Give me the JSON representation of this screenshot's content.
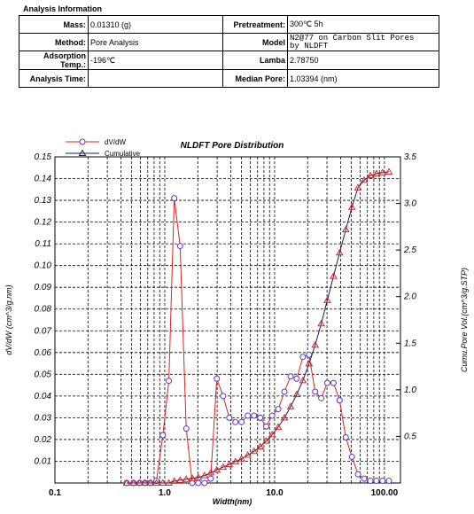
{
  "header": {
    "title": "Analysis Information"
  },
  "info": {
    "mass_label": "Mass:",
    "mass_value": "0.01310 (g)",
    "pretreatment_label": "Pretreatment:",
    "pretreatment_value": "300℃ 5h",
    "method_label": "Method:",
    "method_value": "Pore Analysis",
    "model_label": "Model",
    "model_value_1": "N2@77 on Carbon Slit Pores",
    "model_value_2": "by NLDFT",
    "adsorption_label": "Adsorption Temp.:",
    "adsorption_value": "-196℃",
    "lamba_label": "Lamba",
    "lamba_value": "2.78750",
    "analysis_time_label": "Analysis Time:",
    "analysis_time_value": "",
    "median_label": "Median Pore:",
    "median_value": "1.03394 (nm)"
  },
  "colors": {
    "dvdw": "#dd2222",
    "dvdw_marker": "#5533cc",
    "cumulative": "#1a1a66",
    "grid": "#000000"
  },
  "chart_data": {
    "type": "line",
    "title": "NLDFT Pore Distribution",
    "xlabel": "Width(nm)",
    "ylabel": "dV/dW (cm^3/g.nm)",
    "y2label": "Cumu.Pore Vol.(cm^3/g.STP)",
    "xscale": "log",
    "xlim": [
      0.1,
      140
    ],
    "ylim": [
      0,
      0.15
    ],
    "y2lim": [
      0,
      3.5
    ],
    "grid": true,
    "legend": "top-left",
    "x_ticks": [
      "0.1",
      "1.0",
      "10.0",
      "100.00"
    ],
    "y_ticks": [
      "0.01",
      "0.02",
      "0.03",
      "0.04",
      "0.05",
      "0.06",
      "0.07",
      "0.08",
      "0.09",
      "0.10",
      "0.11",
      "0.12",
      "0.13",
      "0.14",
      "0.15"
    ],
    "y2_ticks": [
      "0.5",
      "1.0",
      "1.5",
      "2.0",
      "2.5",
      "3.0",
      "3.5"
    ],
    "series": [
      {
        "name": "dV/dW",
        "axis": "left",
        "marker": "circle",
        "x": [
          0.45,
          0.52,
          0.59,
          0.66,
          0.74,
          0.84,
          0.96,
          1.09,
          1.22,
          1.38,
          1.57,
          1.78,
          2.02,
          2.3,
          2.62,
          2.98,
          3.4,
          3.87,
          4.4,
          5.0,
          5.7,
          6.5,
          7.4,
          8.4,
          9.5,
          10.8,
          12.3,
          14.0,
          15.9,
          18.1,
          20.6,
          23.4,
          26.6,
          30.2,
          34.4,
          39.1,
          44.5,
          50.6,
          57.5,
          65.4,
          74.4,
          84.6,
          96.2,
          110
        ],
        "y": [
          0.0,
          0.0,
          0.0,
          0.0,
          0.0,
          0.001,
          0.022,
          0.047,
          0.131,
          0.109,
          0.025,
          0.0,
          0.0,
          0.0,
          0.002,
          0.048,
          0.04,
          0.03,
          0.028,
          0.028,
          0.031,
          0.031,
          0.03,
          0.026,
          0.031,
          0.034,
          0.042,
          0.049,
          0.048,
          0.058,
          0.059,
          0.042,
          0.039,
          0.046,
          0.046,
          0.038,
          0.021,
          0.012,
          0.004,
          0.002,
          0.001,
          0.001,
          0.001,
          0.001
        ]
      },
      {
        "name": "Cumulative",
        "axis": "right",
        "marker": "triangle",
        "x": [
          0.45,
          0.52,
          0.59,
          0.66,
          0.74,
          0.84,
          0.96,
          1.09,
          1.22,
          1.38,
          1.57,
          1.78,
          2.02,
          2.3,
          2.62,
          2.98,
          3.4,
          3.87,
          4.4,
          5.0,
          5.7,
          6.5,
          7.4,
          8.4,
          9.5,
          10.8,
          12.3,
          14.0,
          15.9,
          18.1,
          20.6,
          23.4,
          26.6,
          30.2,
          34.4,
          39.1,
          44.5,
          50.6,
          57.5,
          65.4,
          74.4,
          84.6,
          96.2,
          110
        ],
        "y": [
          0.0,
          0.0,
          0.0,
          0.0,
          0.0,
          0.0,
          0.0,
          0.0,
          0.02,
          0.03,
          0.04,
          0.05,
          0.06,
          0.08,
          0.11,
          0.14,
          0.17,
          0.2,
          0.23,
          0.26,
          0.3,
          0.34,
          0.39,
          0.45,
          0.52,
          0.6,
          0.7,
          0.82,
          0.95,
          1.1,
          1.28,
          1.48,
          1.71,
          1.96,
          2.22,
          2.47,
          2.72,
          2.96,
          3.17,
          3.25,
          3.3,
          3.32,
          3.33,
          3.34
        ]
      }
    ]
  }
}
